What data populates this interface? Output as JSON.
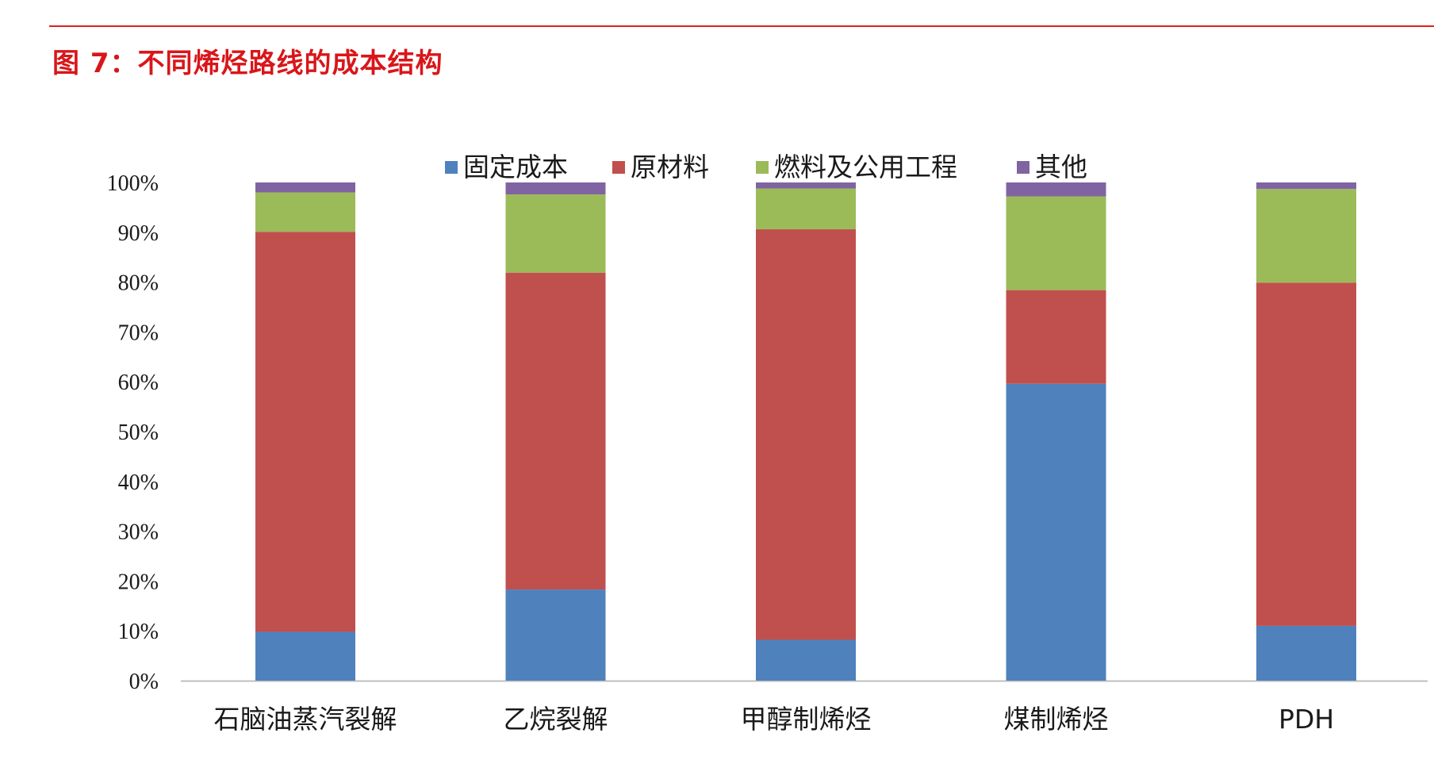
{
  "figure": {
    "title": "图 7：不同烯烃路线的成本结构",
    "rule_color": "#e0201b",
    "title_color": "#d9161a"
  },
  "chart_data": {
    "type": "bar",
    "stacked": true,
    "categories": [
      "石脑油蒸汽裂解",
      "乙烷裂解",
      "甲醇制烯烃",
      "煤制烯烃",
      "PDH"
    ],
    "series": [
      {
        "name": "固定成本",
        "color": "#4f81bd",
        "values": [
          9.8,
          18.3,
          8.2,
          59.6,
          11.0
        ]
      },
      {
        "name": "原材料",
        "color": "#c0504d",
        "values": [
          80.3,
          63.6,
          82.4,
          18.8,
          68.9
        ]
      },
      {
        "name": "燃料及公用工程",
        "color": "#9bbb59",
        "values": [
          7.9,
          15.7,
          8.2,
          18.8,
          18.8
        ]
      },
      {
        "name": "其他",
        "color": "#8064a2",
        "values": [
          2.0,
          2.4,
          1.2,
          2.8,
          1.3
        ]
      }
    ],
    "ylim": [
      0,
      100
    ],
    "yticks": [
      "0%",
      "10%",
      "20%",
      "30%",
      "40%",
      "50%",
      "60%",
      "70%",
      "80%",
      "90%",
      "100%"
    ],
    "xlabel": "",
    "ylabel": "",
    "grid": false,
    "legend_position": "top"
  }
}
